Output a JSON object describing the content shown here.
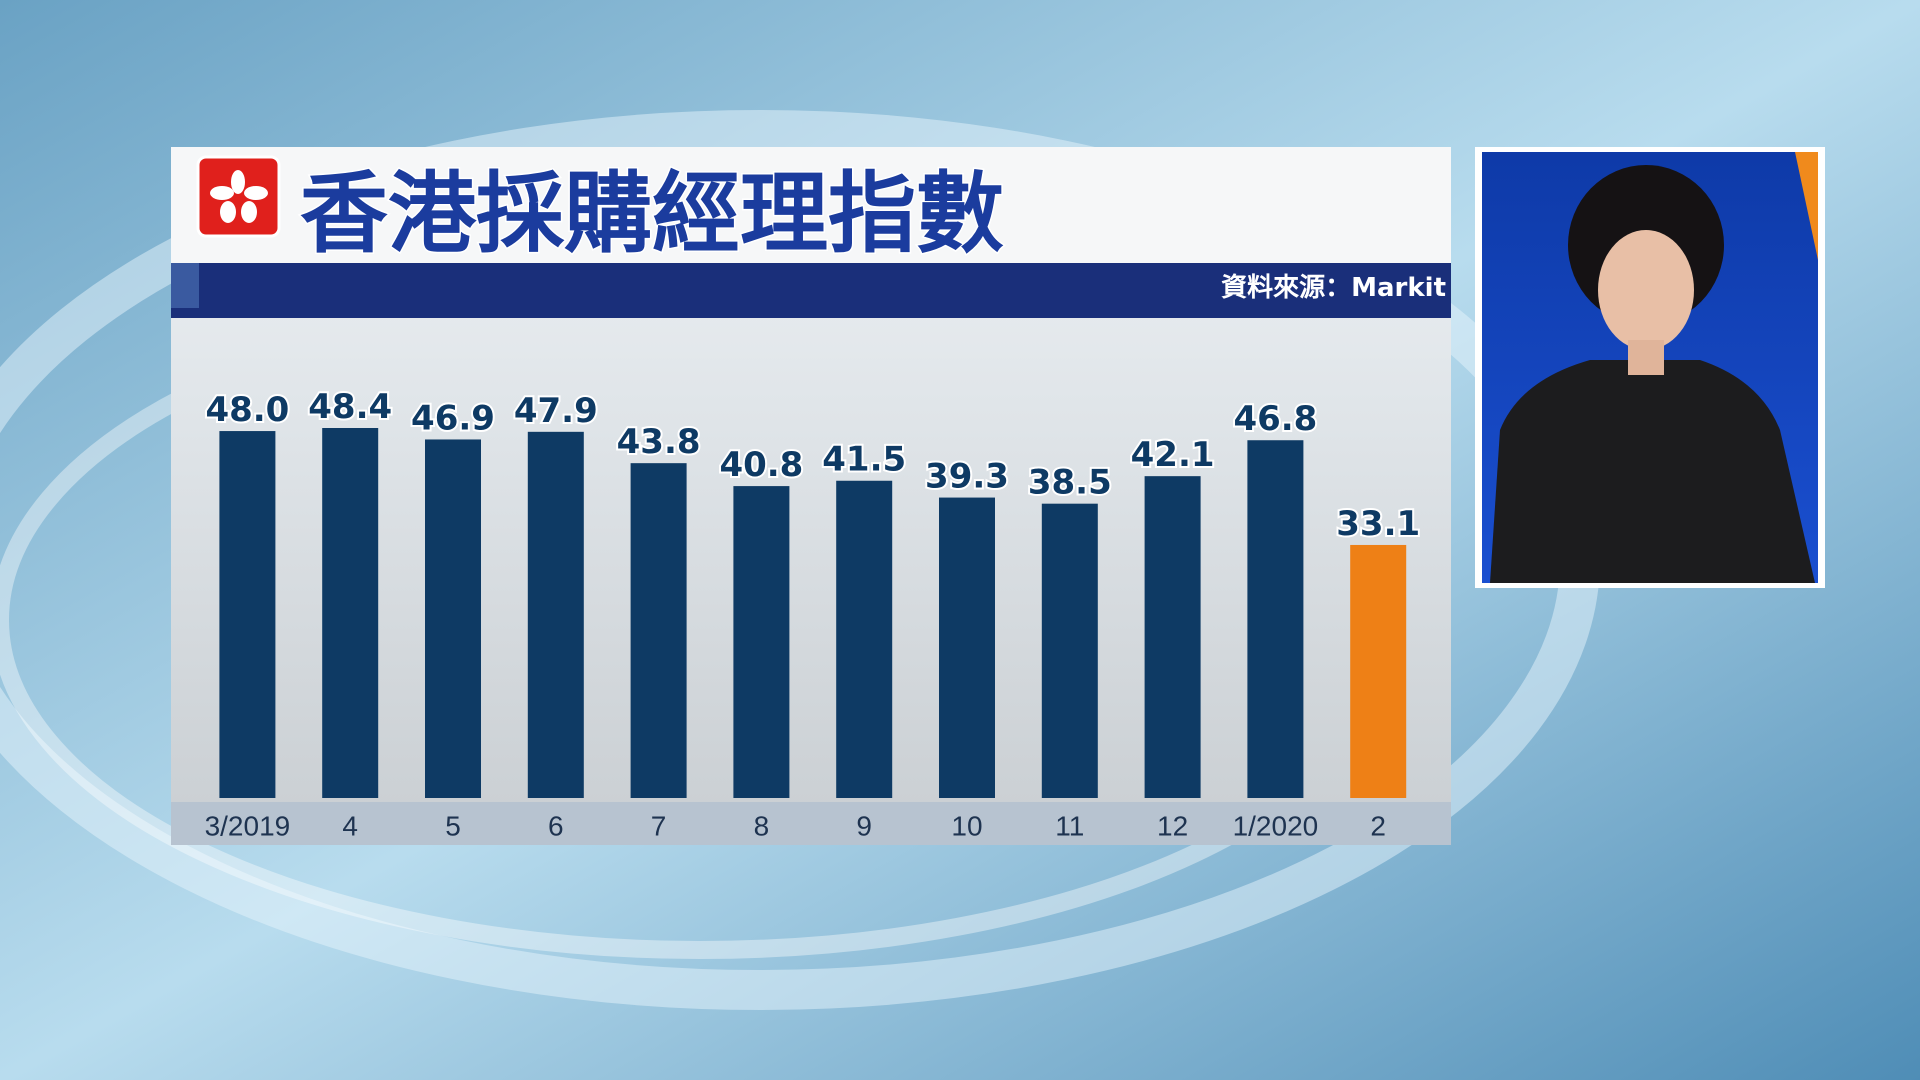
{
  "chart_data": {
    "type": "bar",
    "title": "香港採購經理指數",
    "source": "資料來源：Markit",
    "categories": [
      "3/2019",
      "4",
      "5",
      "6",
      "7",
      "8",
      "9",
      "10",
      "11",
      "12",
      "1/2020",
      "2"
    ],
    "values": [
      48.0,
      48.4,
      46.9,
      47.9,
      43.8,
      40.8,
      41.5,
      39.3,
      38.5,
      42.1,
      46.8,
      33.1
    ],
    "value_labels": [
      "48.0",
      "48.4",
      "46.9",
      "47.9",
      "43.8",
      "40.8",
      "41.5",
      "39.3",
      "38.5",
      "42.1",
      "46.8",
      "33.1"
    ],
    "colors": [
      "#0e3a64",
      "#0e3a64",
      "#0e3a64",
      "#0e3a64",
      "#0e3a64",
      "#0e3a64",
      "#0e3a64",
      "#0e3a64",
      "#0e3a64",
      "#0e3a64",
      "#0e3a64",
      "#ee8016"
    ]
  }
}
